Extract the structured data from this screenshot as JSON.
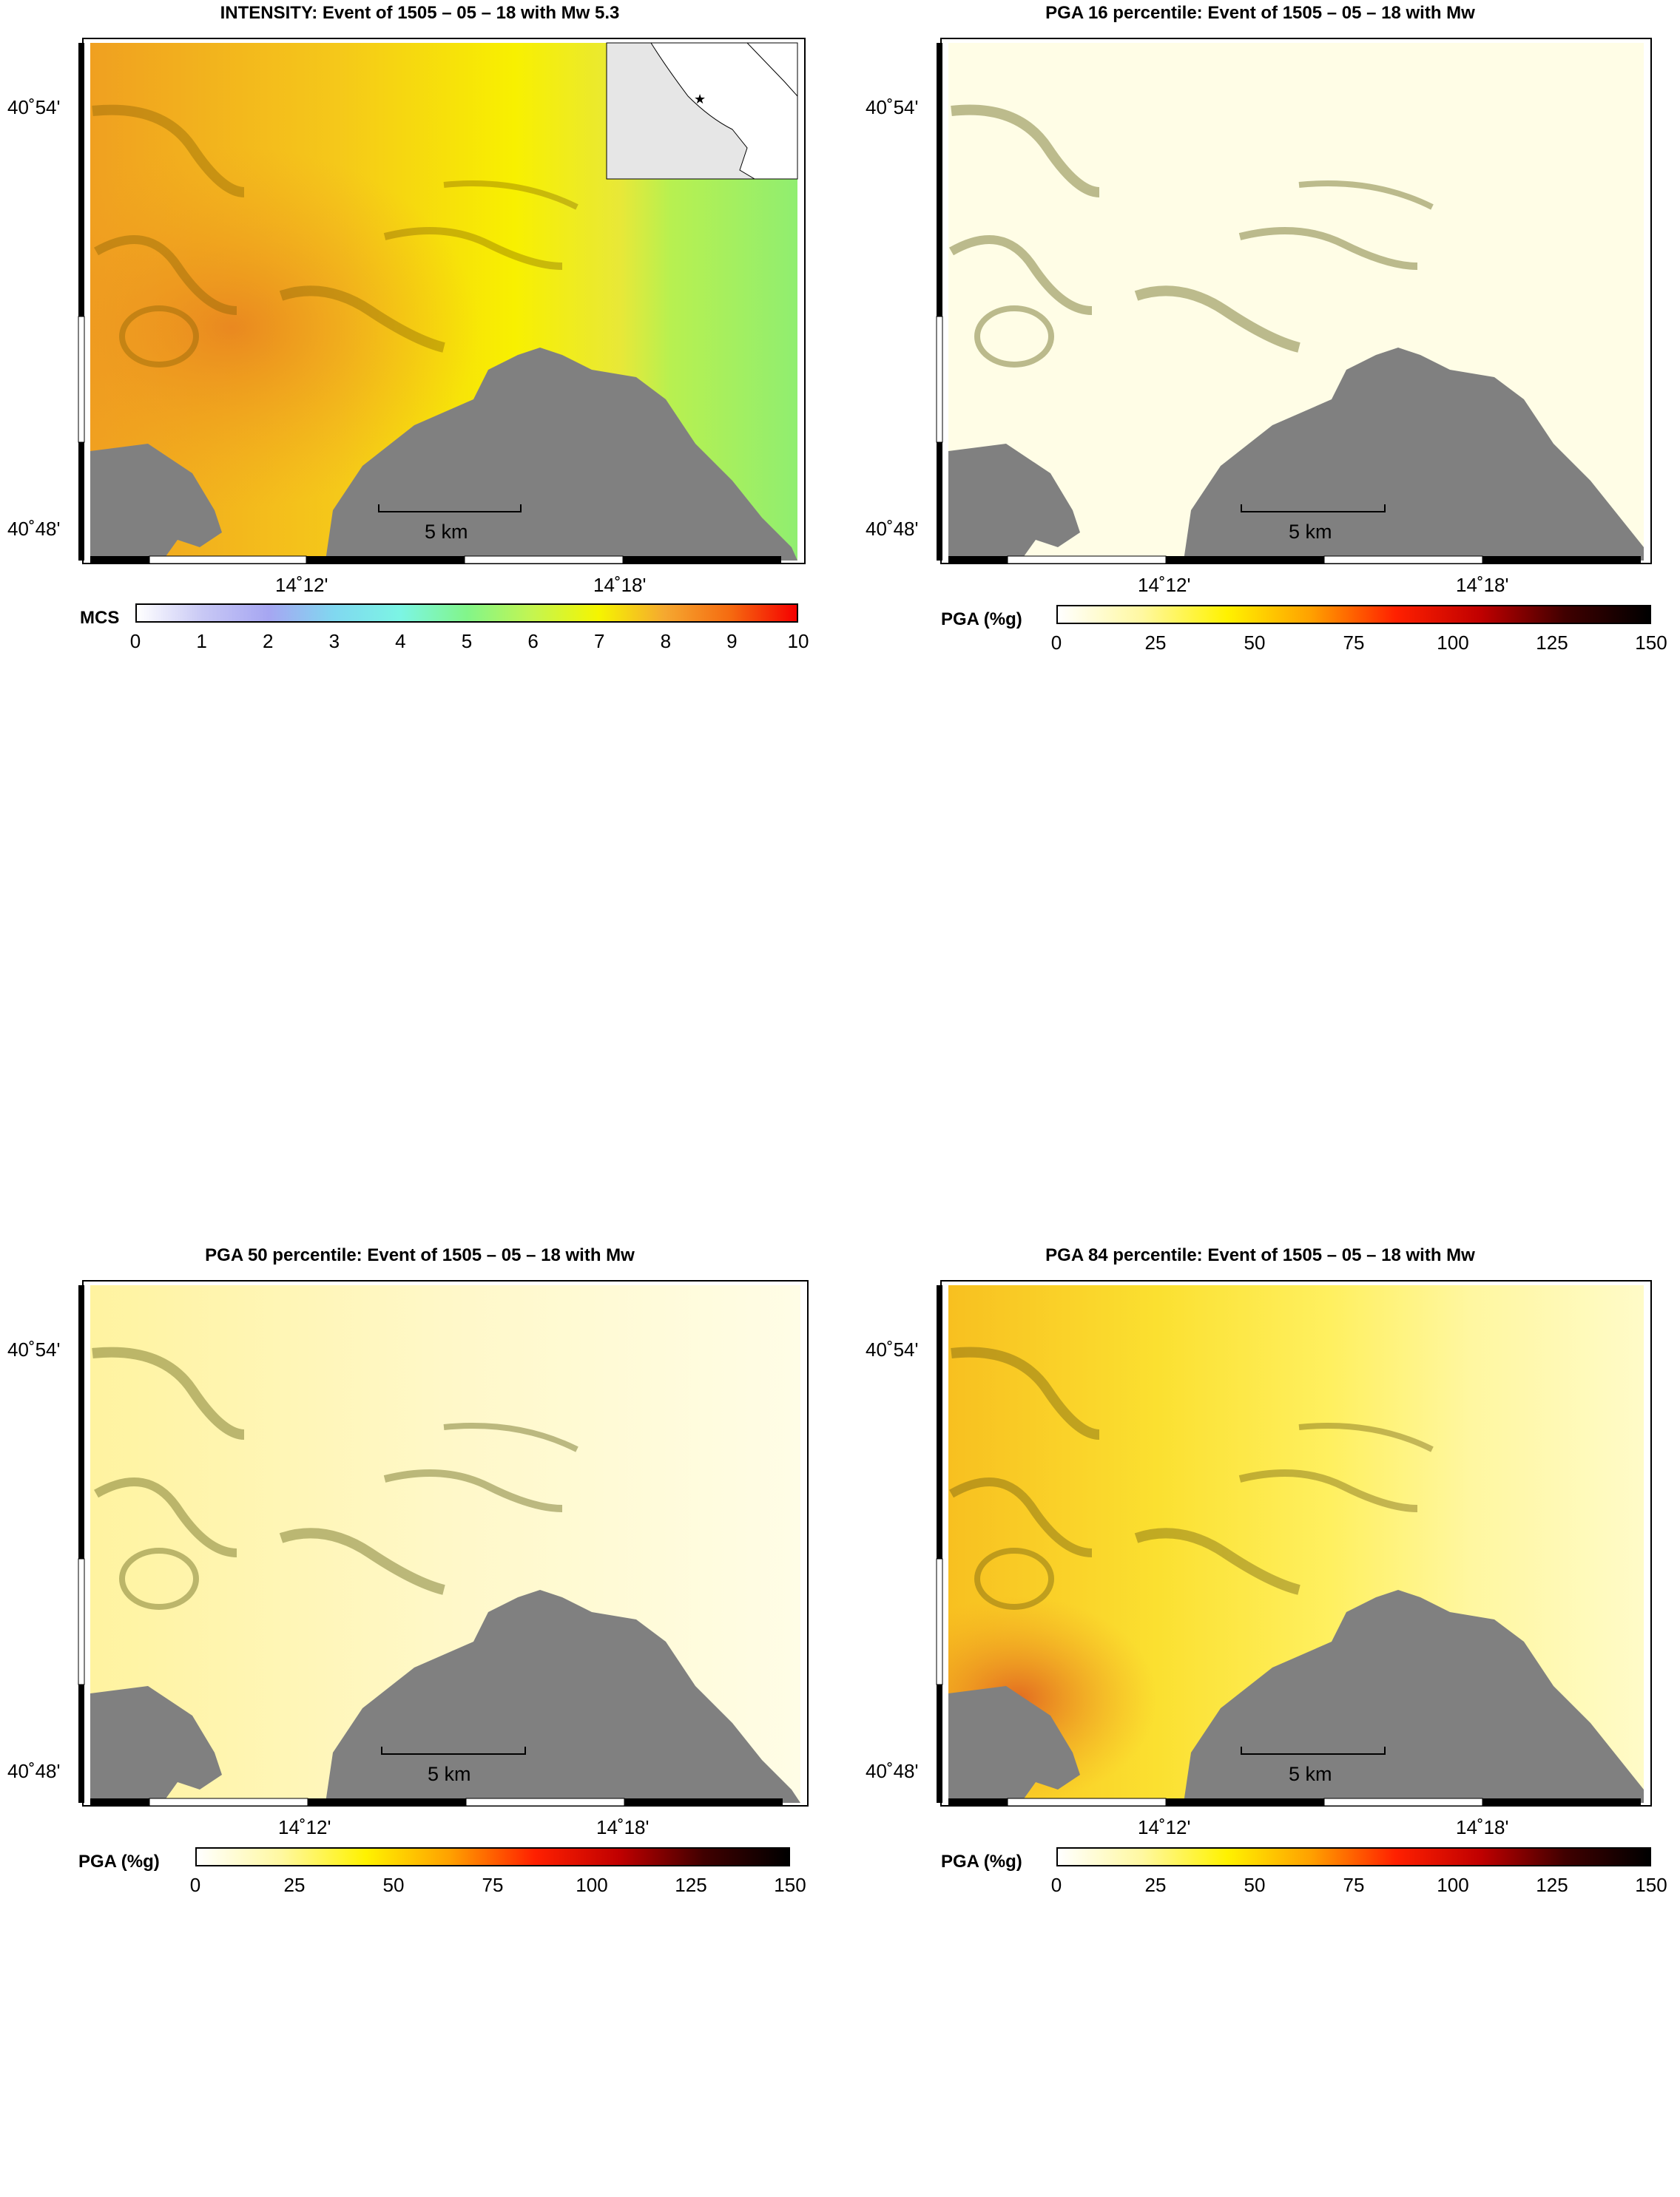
{
  "panels": [
    {
      "id": "intensity",
      "title": "INTENSITY: Event of 1505 – 05 – 18 with Mw 5.3",
      "lat_labels": [
        "40˚54'",
        "40˚48'"
      ],
      "lon_labels": [
        "14˚12'",
        "14˚18'"
      ],
      "scale_bar": "5 km",
      "colorbar": {
        "label": "MCS",
        "ticks": [
          "0",
          "1",
          "2",
          "3",
          "4",
          "5",
          "6",
          "7",
          "8",
          "9",
          "10"
        ],
        "colors": [
          "#ffffff",
          "#c8c8f5",
          "#a6a6f2",
          "#80d8f0",
          "#7cf5e4",
          "#82f58a",
          "#c4f550",
          "#f5f500",
          "#f5a830",
          "#f56a10",
          "#f50000"
        ]
      },
      "has_inset": true
    },
    {
      "id": "pga16",
      "title": "PGA 16 percentile: Event of 1505 – 05 – 18 with Mw",
      "lat_labels": [
        "40˚54'",
        "40˚48'"
      ],
      "lon_labels": [
        "14˚12'",
        "14˚18'"
      ],
      "scale_bar": "5 km",
      "colorbar": {
        "label": "PGA (%g)",
        "ticks": [
          "0",
          "25",
          "50",
          "75",
          "100",
          "125",
          "150"
        ],
        "colors": [
          "#ffffff",
          "#fff8a0",
          "#fff200",
          "#ffa000",
          "#ff2000",
          "#c00000",
          "#400000",
          "#000000"
        ]
      },
      "has_inset": false
    },
    {
      "id": "pga50",
      "title": "PGA 50 percentile: Event of 1505 – 05 – 18 with Mw",
      "lat_labels": [
        "40˚54'",
        "40˚48'"
      ],
      "lon_labels": [
        "14˚12'",
        "14˚18'"
      ],
      "scale_bar": "5 km",
      "colorbar": {
        "label": "PGA (%g)",
        "ticks": [
          "0",
          "25",
          "50",
          "75",
          "100",
          "125",
          "150"
        ],
        "colors": [
          "#ffffff",
          "#fff8a0",
          "#fff200",
          "#ffa000",
          "#ff2000",
          "#c00000",
          "#400000",
          "#000000"
        ]
      },
      "has_inset": false
    },
    {
      "id": "pga84",
      "title": "PGA 84 percentile: Event of 1505 – 05 – 18 with Mw",
      "lat_labels": [
        "40˚54'",
        "40˚48'"
      ],
      "lon_labels": [
        "14˚12'",
        "14˚18'"
      ],
      "scale_bar": "5 km",
      "colorbar": {
        "label": "PGA (%g)",
        "ticks": [
          "0",
          "25",
          "50",
          "75",
          "100",
          "125",
          "150"
        ],
        "colors": [
          "#ffffff",
          "#fff8a0",
          "#fff200",
          "#ffa000",
          "#ff2000",
          "#c00000",
          "#400000",
          "#000000"
        ]
      },
      "has_inset": false
    }
  ],
  "sea_color": "#808080",
  "inset_land_color": "#e6e6e6"
}
